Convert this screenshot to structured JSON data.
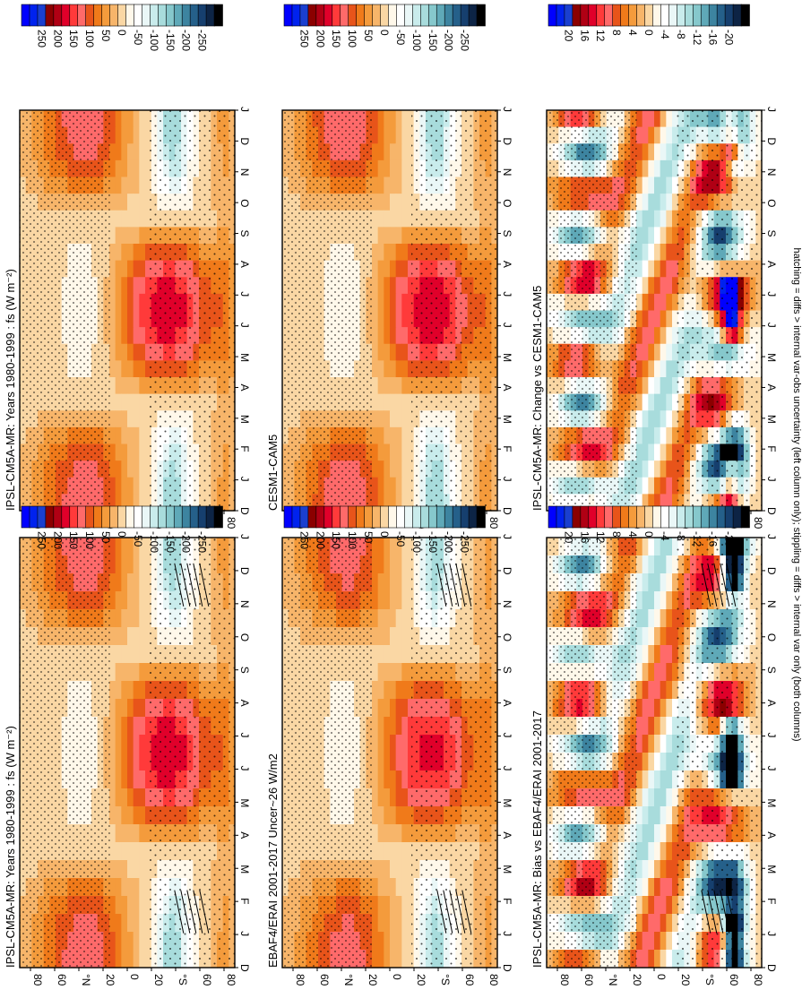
{
  "footnote": "hatching = diffs > internal var-obs uncertainty (left column only); stippling = diffs > internal var only (both columns)",
  "month_labels": [
    "D",
    "J",
    "F",
    "M",
    "A",
    "M",
    "J",
    "J",
    "A",
    "S",
    "O",
    "N",
    "D",
    "J"
  ],
  "lat_labels": [
    "80",
    "60",
    "°N",
    "20",
    "0",
    "20",
    "°S",
    "60",
    "80"
  ],
  "colorbar_flux": {
    "labels": [
      "250",
      "200",
      "150",
      "100",
      "50",
      "0",
      "-50",
      "-100",
      "-150",
      "-200",
      "-250"
    ],
    "colors": [
      "#0000ff",
      "#0022ee",
      "#1a3fd0",
      "#8b0000",
      "#b00014",
      "#e0002a",
      "#ff3a3a",
      "#ff6a6a",
      "#e8541a",
      "#f07a1a",
      "#f49b3c",
      "#f7b56a",
      "#fad7a4",
      "#fff8ea",
      "#ffffff",
      "#eaf7f7",
      "#c9ecec",
      "#a8dcdc",
      "#86c8cc",
      "#5fa9b8",
      "#3d84a0",
      "#25608a",
      "#163f6e",
      "#0d2445",
      "#000000"
    ]
  },
  "colorbar_diff": {
    "labels": [
      "20",
      "16",
      "12",
      "8",
      "4",
      "0",
      "-4",
      "-8",
      "-12",
      "-16",
      "-20"
    ],
    "colors": [
      "#0000ff",
      "#0022ee",
      "#1a3fd0",
      "#8b0000",
      "#b00014",
      "#e0002a",
      "#ff3a3a",
      "#ff6a6a",
      "#e8541a",
      "#f07a1a",
      "#f49b3c",
      "#f7b56a",
      "#fad7a4",
      "#fff8ea",
      "#ffffff",
      "#eaf7f7",
      "#c9ecec",
      "#a8dcdc",
      "#86c8cc",
      "#5fa9b8",
      "#3d84a0",
      "#25608a",
      "#163f6e",
      "#0d2445",
      "#000000"
    ]
  },
  "chart_data": [
    {
      "type": "heatmap",
      "title": "IPSL-CM5A-MR: Years 1980-1999 : fs (W m⁻²)",
      "field": "mean",
      "colorbar": "flux",
      "hatch": true
    },
    {
      "type": "heatmap",
      "title": "EBAF4/ERAI 2001-2017 Uncer~26 W/m2",
      "field": "obs",
      "colorbar": "flux",
      "hatch": true
    },
    {
      "type": "heatmap",
      "title": "IPSL-CM5A-MR: Bias vs EBAF4/ERAI 2001-2017",
      "field": "bias",
      "colorbar": "diff",
      "hatch": true
    },
    {
      "type": "heatmap",
      "title": "IPSL-CM5A-MR: Years 1980-1999 : fs (W m⁻²)",
      "field": "mean",
      "colorbar": "flux",
      "hatch": false
    },
    {
      "type": "heatmap",
      "title": "CESM1-CAM5",
      "field": "model2",
      "colorbar": "flux",
      "hatch": false
    },
    {
      "type": "heatmap",
      "title": "IPSL-CM5A-MR: Change vs CESM1-CAM5",
      "field": "change",
      "colorbar": "diff",
      "hatch": false
    }
  ]
}
